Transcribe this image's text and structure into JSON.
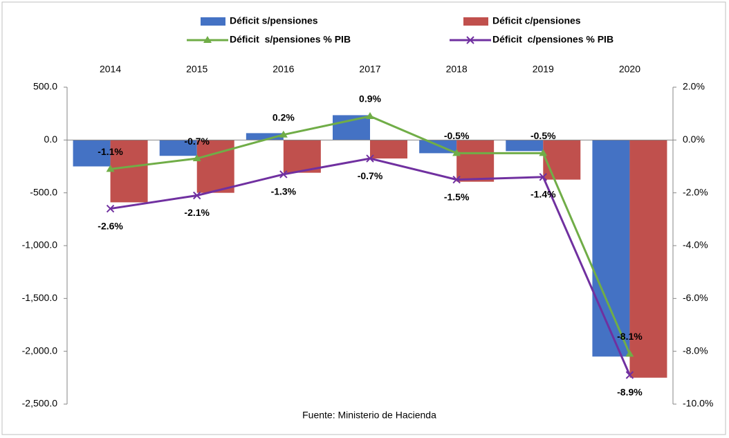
{
  "chart_data": {
    "type": "bar_line",
    "categories": [
      "2014",
      "2015",
      "2016",
      "2017",
      "2018",
      "2019",
      "2020"
    ],
    "series": [
      {
        "name": "Déficit s/pensiones",
        "type": "bar",
        "color": "#4472c4",
        "values": [
          -250,
          -150,
          65,
          235,
          -125,
          -105,
          -2050
        ]
      },
      {
        "name": "Déficit c/pensiones",
        "type": "bar",
        "color": "#c0504d",
        "values": [
          -590,
          -500,
          -310,
          -175,
          -395,
          -375,
          -2250
        ]
      },
      {
        "name": "Déficit  s/pensiones % PIB",
        "type": "line",
        "marker": "triangle",
        "axis": "y2",
        "color": "#70ad47",
        "values": [
          -1.1,
          -0.7,
          0.2,
          0.9,
          -0.5,
          -0.5,
          -8.1
        ],
        "value_labels": [
          "-1.1%",
          "-0.7%",
          "0.2%",
          "0.9%",
          "-0.5%",
          "-0.5%",
          "-8.1%"
        ]
      },
      {
        "name": "Déficit  c/pensiones % PIB",
        "type": "line",
        "marker": "x",
        "axis": "y2",
        "color": "#7030a0",
        "values": [
          -2.6,
          -2.1,
          -1.3,
          -0.7,
          -1.5,
          -1.4,
          -8.9
        ],
        "value_labels": [
          "-2.6%",
          "-2.1%",
          "-1.3%",
          "-0.7%",
          "-1.5%",
          "-1.4%",
          "-8.9%"
        ]
      }
    ],
    "ylim": [
      -2500,
      500
    ],
    "yticks": [
      {
        "value": -2500,
        "label": "-2,500.0"
      },
      {
        "value": -2000,
        "label": "-2,000.0"
      },
      {
        "value": -1500,
        "label": "-1,500.0"
      },
      {
        "value": -1000,
        "label": "-1,000.0"
      },
      {
        "value": -500,
        "label": "-500.0"
      },
      {
        "value": 0,
        "label": "0.0"
      },
      {
        "value": 500,
        "label": "500.0"
      }
    ],
    "y2lim": [
      -10,
      2
    ],
    "y2ticks": [
      {
        "value": -10,
        "label": "-10.0%"
      },
      {
        "value": -8,
        "label": "-8.0%"
      },
      {
        "value": -6,
        "label": "-6.0%"
      },
      {
        "value": -4,
        "label": "-4.0%"
      },
      {
        "value": -2,
        "label": "-2.0%"
      },
      {
        "value": 0,
        "label": "0.0%"
      },
      {
        "value": 2,
        "label": "2.0%"
      }
    ],
    "source": "Fuente:  Ministerio de Hacienda"
  }
}
